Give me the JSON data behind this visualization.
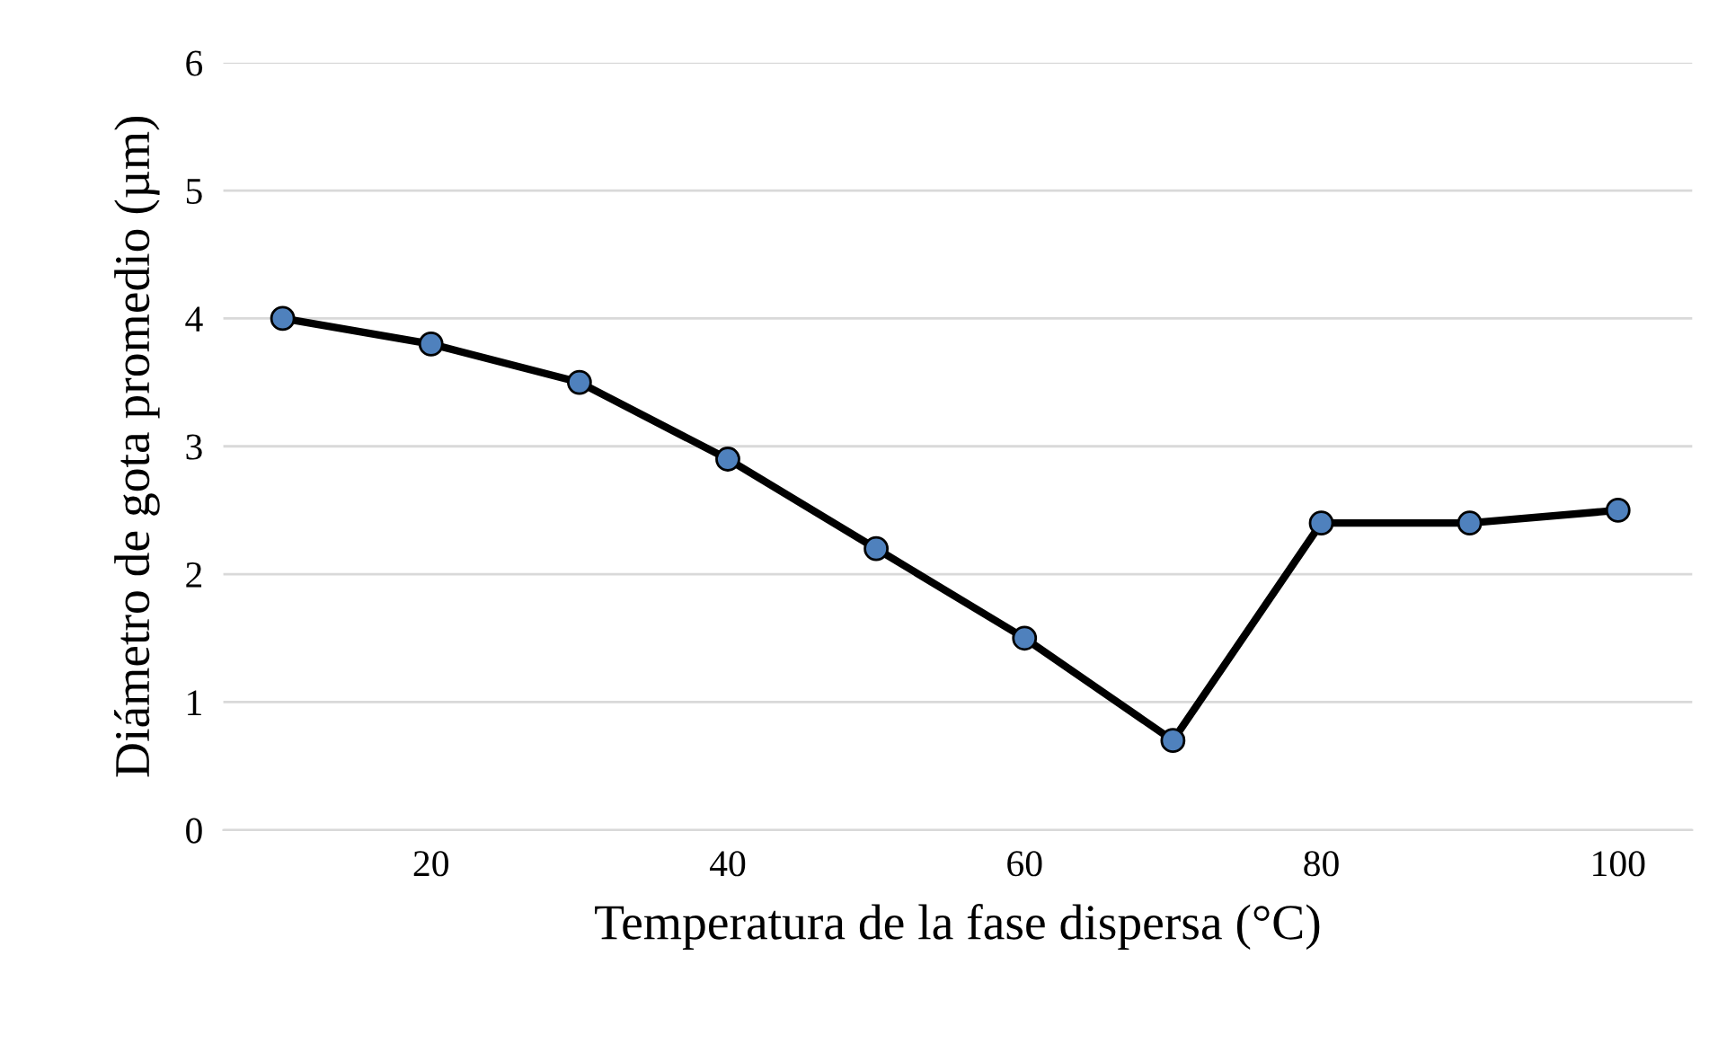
{
  "chart_data": {
    "type": "line",
    "xlabel": "Temperatura de la fase dispersa (°C)",
    "ylabel": "Diámetro de gota promedio (µm)",
    "x": [
      10,
      20,
      30,
      40,
      50,
      60,
      70,
      80,
      90,
      100
    ],
    "series": [
      {
        "color": "#000000",
        "values": [
          4.0,
          3.8,
          3.5,
          2.9,
          2.2,
          1.5,
          0.7,
          2.4,
          2.4,
          2.5
        ]
      }
    ],
    "xlim": [
      6,
      105
    ],
    "xticks": [
      20,
      40,
      60,
      80,
      100
    ],
    "ylim": [
      0,
      6
    ],
    "yticks": [
      0,
      1,
      2,
      3,
      4,
      5,
      6
    ],
    "grid": "y",
    "marker": "circle",
    "line_style": "solid",
    "legend": false
  }
}
